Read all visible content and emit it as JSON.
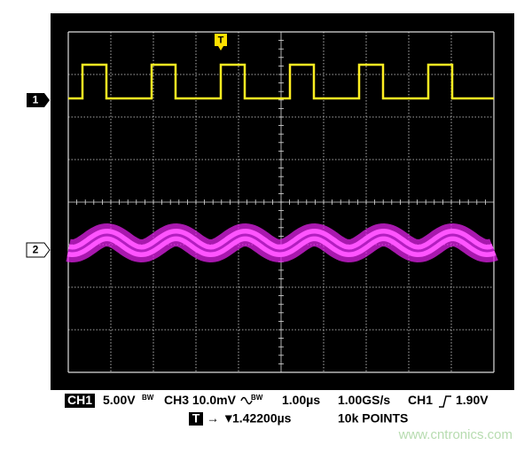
{
  "screen": {
    "trigger_marker": "T",
    "channel_markers": [
      "1",
      "2"
    ]
  },
  "status": {
    "line1": {
      "ch1_label": "CH1",
      "ch1_scale": "5.00V",
      "ch1_bw": "BW",
      "ch3": "CH3 10.0mV",
      "ch3_bw": "BW",
      "timebase": "1.00µs",
      "sample_rate": "1.00GS/s",
      "trigger_source": "CH1",
      "trigger_level": "1.90V"
    },
    "line2": {
      "trigger_icon": "T",
      "arrows": "→ ▼",
      "trigger_delay": "1.42200µs",
      "points": "10k POINTS"
    }
  },
  "watermark": "www.cntronics.com"
}
